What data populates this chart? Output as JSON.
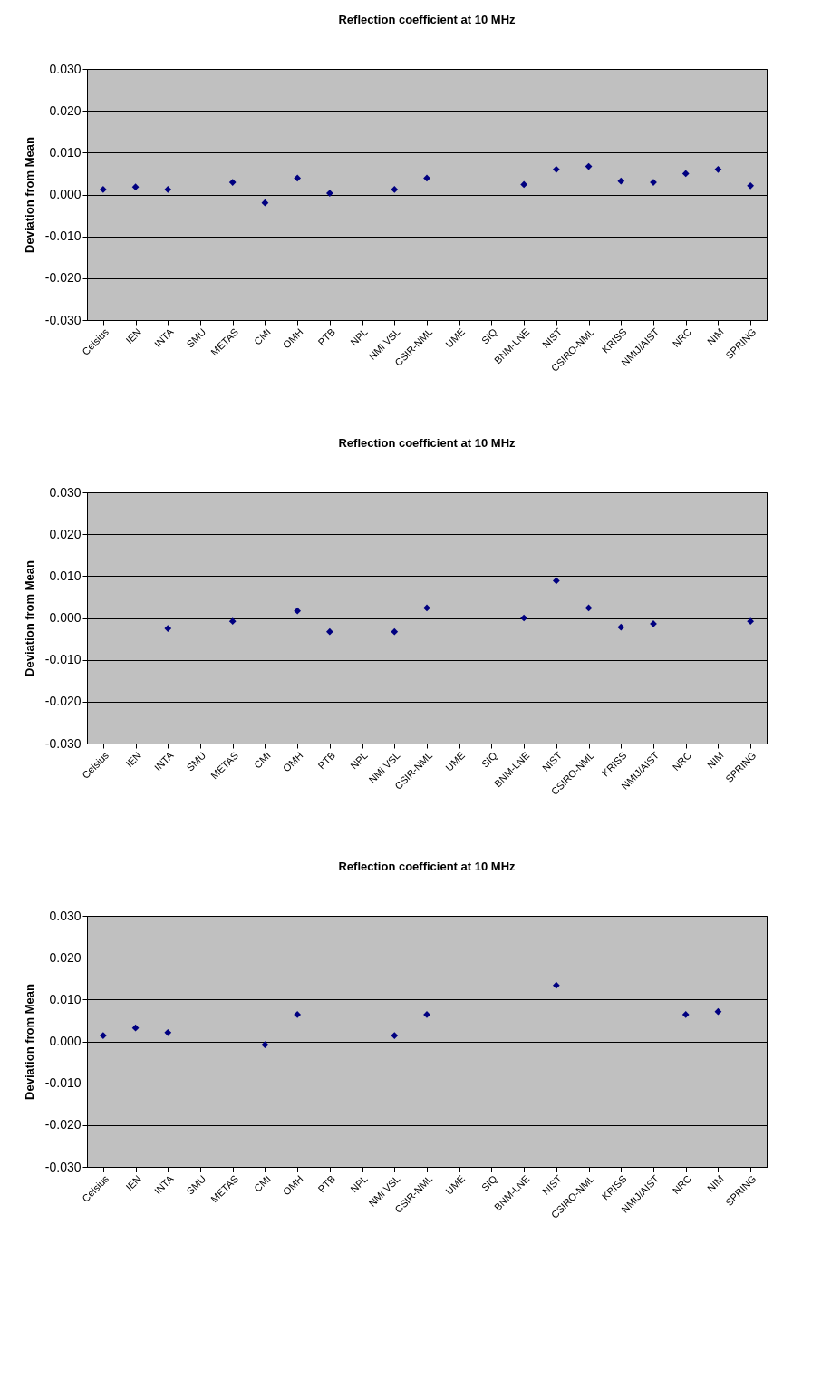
{
  "chart_data": [
    {
      "type": "scatter",
      "title": "Reflection coefficient at 10 MHz",
      "ylabel": "Deviation from Mean",
      "categories": [
        "Celsius",
        "IEN",
        "INTA",
        "SMU",
        "METAS",
        "CMI",
        "OMH",
        "PTB",
        "NPL",
        "NMi VSL",
        "CSIR-NML",
        "UME",
        "SIQ",
        "BNM-LNE",
        "NIST",
        "CSIRO-NML",
        "KRISS",
        "NMIJ/AIST",
        "NRC",
        "NIM",
        "SPRING"
      ],
      "series": [
        {
          "color": "#000080",
          "values": [
            0.0012,
            0.0018,
            0.0012,
            null,
            0.0029,
            -0.002,
            0.0039,
            0.0003,
            null,
            0.0012,
            0.0039,
            null,
            null,
            0.0024,
            0.006,
            0.0067,
            0.0032,
            0.0029,
            0.005,
            0.006,
            0.0021
          ]
        }
      ],
      "ylim": [
        -0.03,
        0.03
      ],
      "yticks": [
        {
          "value": -0.03,
          "label": "-0.030"
        },
        {
          "value": -0.02,
          "label": "-0.020"
        },
        {
          "value": -0.01,
          "label": "-0.010"
        },
        {
          "value": 0,
          "label": "0.000"
        },
        {
          "value": 0.01,
          "label": "0.010"
        },
        {
          "value": 0.02,
          "label": "0.020"
        },
        {
          "value": 0.03,
          "label": "0.030"
        }
      ],
      "grid": "y",
      "marker": "diamond"
    },
    {
      "type": "scatter",
      "title": "Reflection coefficient at 10 MHz",
      "ylabel": "Deviation from Mean",
      "categories": [
        "Celsius",
        "IEN",
        "INTA",
        "SMU",
        "METAS",
        "CMI",
        "OMH",
        "PTB",
        "NPL",
        "NMi VSL",
        "CSIR-NML",
        "UME",
        "SIQ",
        "BNM-LNE",
        "NIST",
        "CSIRO-NML",
        "KRISS",
        "NMIJ/AIST",
        "NRC",
        "NIM",
        "SPRING"
      ],
      "series": [
        {
          "color": "#000080",
          "values": [
            null,
            null,
            -0.0025,
            null,
            -0.0008,
            null,
            0.0017,
            -0.0033,
            null,
            -0.0033,
            0.0024,
            null,
            null,
            0.0,
            0.0089,
            0.0024,
            -0.0022,
            -0.0014,
            null,
            null,
            -0.0008
          ]
        }
      ],
      "ylim": [
        -0.03,
        0.03
      ],
      "yticks": [
        {
          "value": -0.03,
          "label": "-0.030"
        },
        {
          "value": -0.02,
          "label": "-0.020"
        },
        {
          "value": -0.01,
          "label": "-0.010"
        },
        {
          "value": 0,
          "label": "0.000"
        },
        {
          "value": 0.01,
          "label": "0.010"
        },
        {
          "value": 0.02,
          "label": "0.020"
        },
        {
          "value": 0.03,
          "label": "0.030"
        }
      ],
      "grid": "y",
      "marker": "diamond"
    },
    {
      "type": "scatter",
      "title": "Reflection coefficient at 10 MHz",
      "ylabel": "Deviation from Mean",
      "categories": [
        "Celsius",
        "IEN",
        "INTA",
        "SMU",
        "METAS",
        "CMI",
        "OMH",
        "PTB",
        "NPL",
        "NMi VSL",
        "CSIR-NML",
        "UME",
        "SIQ",
        "BNM-LNE",
        "NIST",
        "CSIRO-NML",
        "KRISS",
        "NMIJ/AIST",
        "NRC",
        "NIM",
        "SPRING"
      ],
      "series": [
        {
          "color": "#000080",
          "values": [
            0.0014,
            0.0032,
            0.0021,
            null,
            null,
            -0.0008,
            0.0064,
            null,
            null,
            0.0014,
            0.0064,
            null,
            null,
            null,
            0.0134,
            null,
            null,
            null,
            0.0064,
            0.0071,
            null
          ]
        }
      ],
      "ylim": [
        -0.03,
        0.03
      ],
      "yticks": [
        {
          "value": -0.03,
          "label": "-0.030"
        },
        {
          "value": -0.02,
          "label": "-0.020"
        },
        {
          "value": -0.01,
          "label": "-0.010"
        },
        {
          "value": 0,
          "label": "0.000"
        },
        {
          "value": 0.01,
          "label": "0.010"
        },
        {
          "value": 0.02,
          "label": "0.020"
        },
        {
          "value": 0.03,
          "label": "0.030"
        }
      ],
      "grid": "y",
      "marker": "diamond"
    }
  ]
}
